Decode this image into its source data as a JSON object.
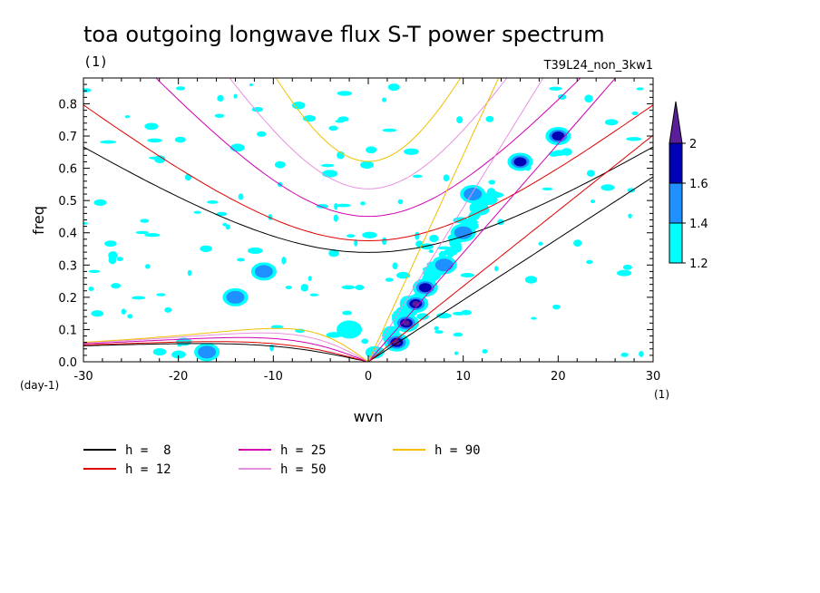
{
  "chart_data": {
    "type": "heatmap",
    "title": "toa outgoing longwave flux S-T power spectrum",
    "title_units": "(1)",
    "run_label": "T39L24_non_3kw1",
    "xlabel": "wvn",
    "ylabel": "freq",
    "x_units": "(1)",
    "y_units": "(day-1)",
    "xlim": [
      -30,
      30
    ],
    "ylim": [
      0,
      0.88
    ],
    "x_ticks": [
      -30,
      -20,
      -10,
      0,
      10,
      20,
      30
    ],
    "x_tick_labels": [
      "-30",
      "-20",
      "-10",
      "0",
      "10",
      "20",
      "30"
    ],
    "y_ticks": [
      0,
      0.1,
      0.2,
      0.3,
      0.4,
      0.5,
      0.6,
      0.7,
      0.8
    ],
    "y_tick_labels": [
      "0.0",
      "0.1",
      "0.2",
      "0.3",
      "0.4",
      "0.5",
      "0.6",
      "0.7",
      "0.8"
    ],
    "colorbar": {
      "levels": [
        1.2,
        1.4,
        1.6,
        2
      ],
      "labels": [
        "1.2",
        "1.4",
        "1.6",
        "2"
      ],
      "colors": [
        "#00ffff",
        "#1e90ff",
        "#0000b4",
        "#5a1e9b"
      ]
    },
    "dispersion_curves": [
      {
        "name": "h =  8",
        "h": 8,
        "color": "#000000"
      },
      {
        "name": "h = 12",
        "h": 12,
        "color": "#e00000"
      },
      {
        "name": "h = 25",
        "h": 25,
        "color": "#d000b0"
      },
      {
        "name": "h = 50",
        "h": 50,
        "color": "#e890e0"
      },
      {
        "name": "h = 90",
        "h": 90,
        "color": "#f0c000"
      }
    ],
    "spectral_peaks": [
      {
        "wvn": 4,
        "freq": 0.12,
        "level": 2
      },
      {
        "wvn": 5,
        "freq": 0.18,
        "level": 2
      },
      {
        "wvn": 6,
        "freq": 0.23,
        "level": 1.6
      },
      {
        "wvn": 3,
        "freq": 0.06,
        "level": 2
      },
      {
        "wvn": 8,
        "freq": 0.3,
        "level": 1.4
      },
      {
        "wvn": 10,
        "freq": 0.4,
        "level": 1.4
      },
      {
        "wvn": 11,
        "freq": 0.52,
        "level": 1.4
      },
      {
        "wvn": 16,
        "freq": 0.62,
        "level": 1.6
      },
      {
        "wvn": 20,
        "freq": 0.7,
        "level": 1.6
      },
      {
        "wvn": -11,
        "freq": 0.28,
        "level": 1.4
      },
      {
        "wvn": -14,
        "freq": 0.2,
        "level": 1.4
      },
      {
        "wvn": -17,
        "freq": 0.03,
        "level": 1.4
      },
      {
        "wvn": -2,
        "freq": 0.1,
        "level": 1.2
      }
    ]
  }
}
